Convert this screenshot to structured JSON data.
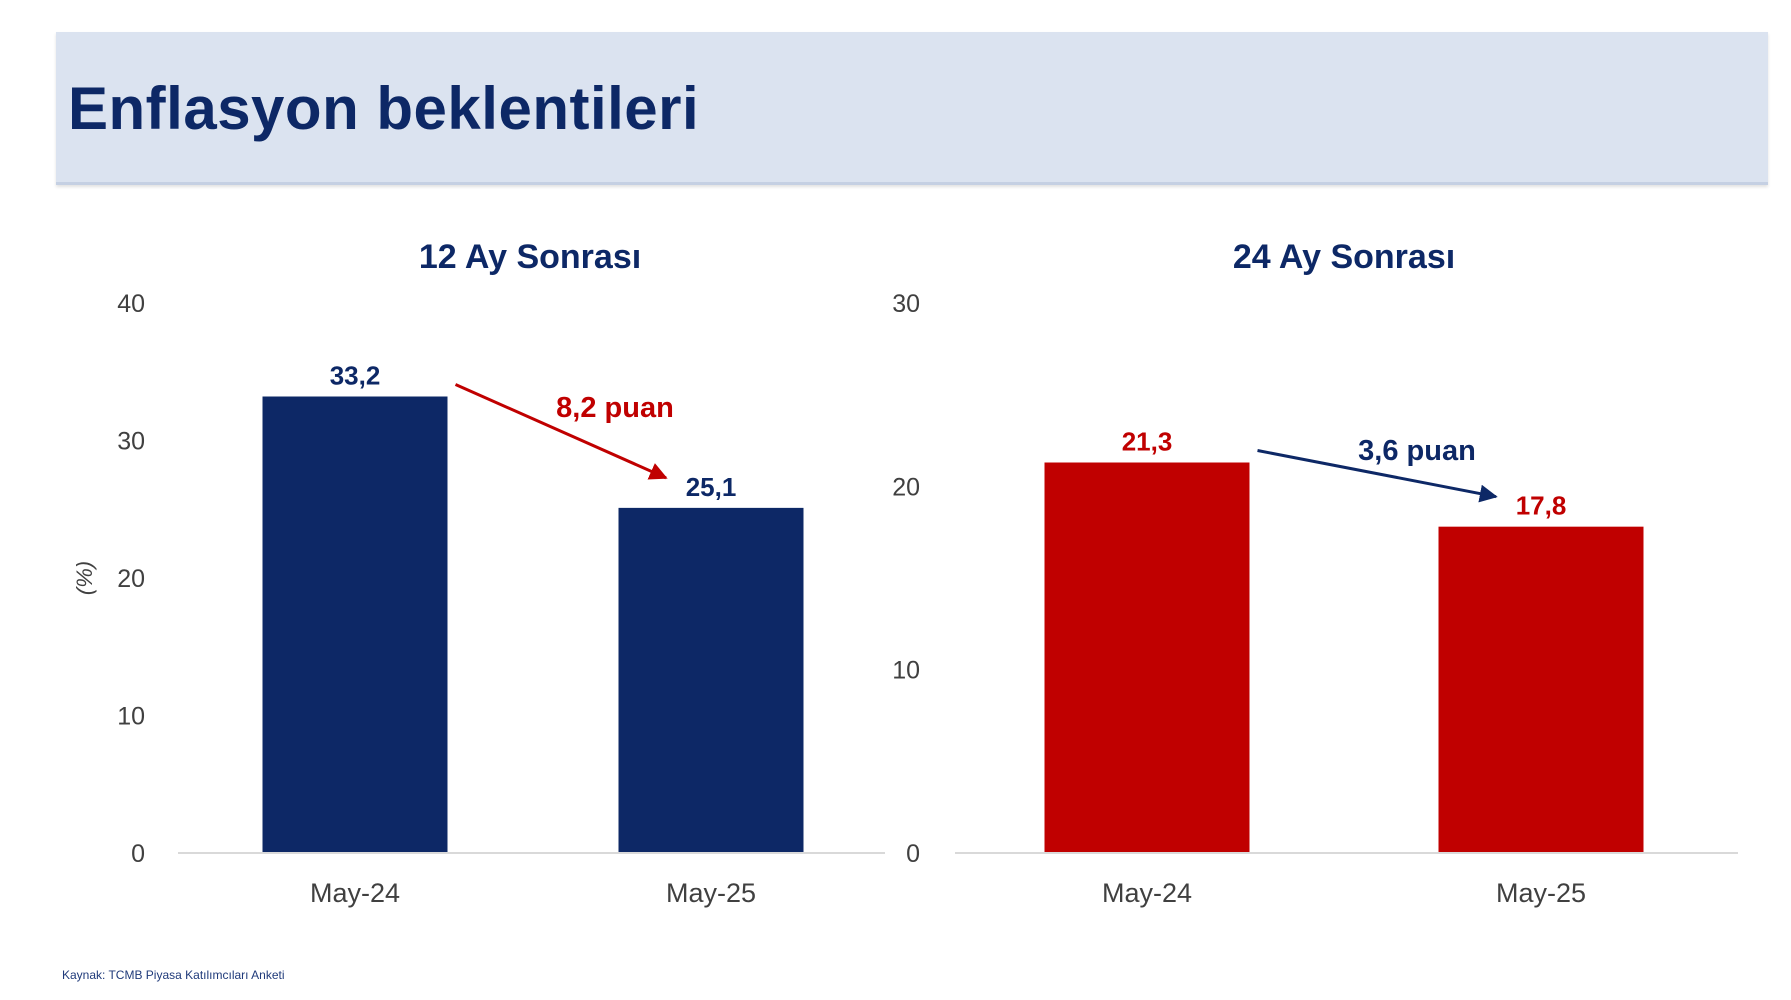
{
  "page_title": "Enflasyon beklentileri",
  "source_note": "Kaynak: TCMB Piyasa Katılımcıları Anketi",
  "colors": {
    "header_bg": "#dbe3f0",
    "navy": "#0d2866",
    "red": "#c00000",
    "axis_text": "#404040"
  },
  "chart_data": [
    {
      "type": "bar",
      "title": "12 Ay Sonrası",
      "ylabel": "(%)",
      "xlabel": "",
      "categories": [
        "May-24",
        "May-25"
      ],
      "values": [
        33.2,
        25.1
      ],
      "value_labels": [
        "33,2",
        "25,1"
      ],
      "ylim": [
        0,
        40
      ],
      "yticks": [
        0,
        10,
        20,
        30,
        40
      ],
      "bar_color": "#0d2866",
      "label_color": "#0d2866",
      "grid": false,
      "annotation": {
        "text": "8,2 puan",
        "color": "#c00000",
        "from": "May-24",
        "to": "May-25"
      }
    },
    {
      "type": "bar",
      "title": "24 Ay Sonrası",
      "ylabel": "",
      "xlabel": "",
      "categories": [
        "May-24",
        "May-25"
      ],
      "values": [
        21.3,
        17.8
      ],
      "value_labels": [
        "21,3",
        "17,8"
      ],
      "ylim": [
        0,
        30
      ],
      "yticks": [
        0,
        10,
        20,
        30
      ],
      "bar_color": "#c00000",
      "label_color": "#c00000",
      "grid": false,
      "annotation": {
        "text": "3,6 puan",
        "color": "#0d2866",
        "from": "May-24",
        "to": "May-25"
      }
    }
  ]
}
